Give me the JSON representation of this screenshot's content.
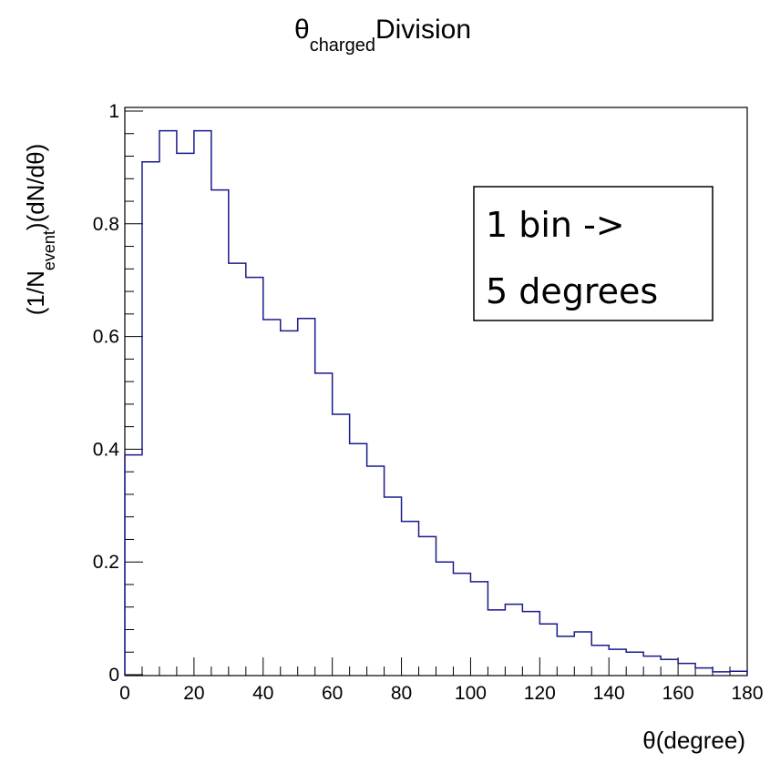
{
  "chart_data": {
    "type": "bar",
    "style": "step-histogram",
    "title": {
      "symbol": "θ",
      "subscript": "charged",
      "text": "Division"
    },
    "xlabel": "θ(degree)",
    "ylabel": {
      "prefix": "(1/N",
      "subscript": "event",
      "suffix": ")(dN/dθ)"
    },
    "xlim": [
      0,
      180
    ],
    "ylim": [
      0,
      1.03
    ],
    "x_ticks": [
      "0",
      "20",
      "40",
      "60",
      "80",
      "100",
      "120",
      "140",
      "160",
      "180"
    ],
    "x_tick_values": [
      0,
      20,
      40,
      60,
      80,
      100,
      120,
      140,
      160,
      180
    ],
    "y_ticks": [
      "0",
      "0.2",
      "0.4",
      "0.6",
      "0.8",
      "1"
    ],
    "y_tick_values": [
      0,
      0.2,
      0.4,
      0.6,
      0.8,
      1.0
    ],
    "bin_width": 5,
    "bin_edges_start": 0,
    "values": [
      0.39,
      0.91,
      0.965,
      0.925,
      0.965,
      0.86,
      0.73,
      0.705,
      0.63,
      0.61,
      0.632,
      0.535,
      0.462,
      0.41,
      0.37,
      0.315,
      0.272,
      0.245,
      0.2,
      0.18,
      0.165,
      0.115,
      0.125,
      0.112,
      0.09,
      0.068,
      0.076,
      0.052,
      0.045,
      0.04,
      0.033,
      0.027,
      0.02,
      0.012,
      0.005,
      0.006
    ],
    "line_color": "#1a1a8c",
    "annotation": {
      "lines": [
        "1 bin ->",
        "5 degrees"
      ],
      "position": "top-right"
    },
    "grid": false,
    "legend": "none"
  }
}
